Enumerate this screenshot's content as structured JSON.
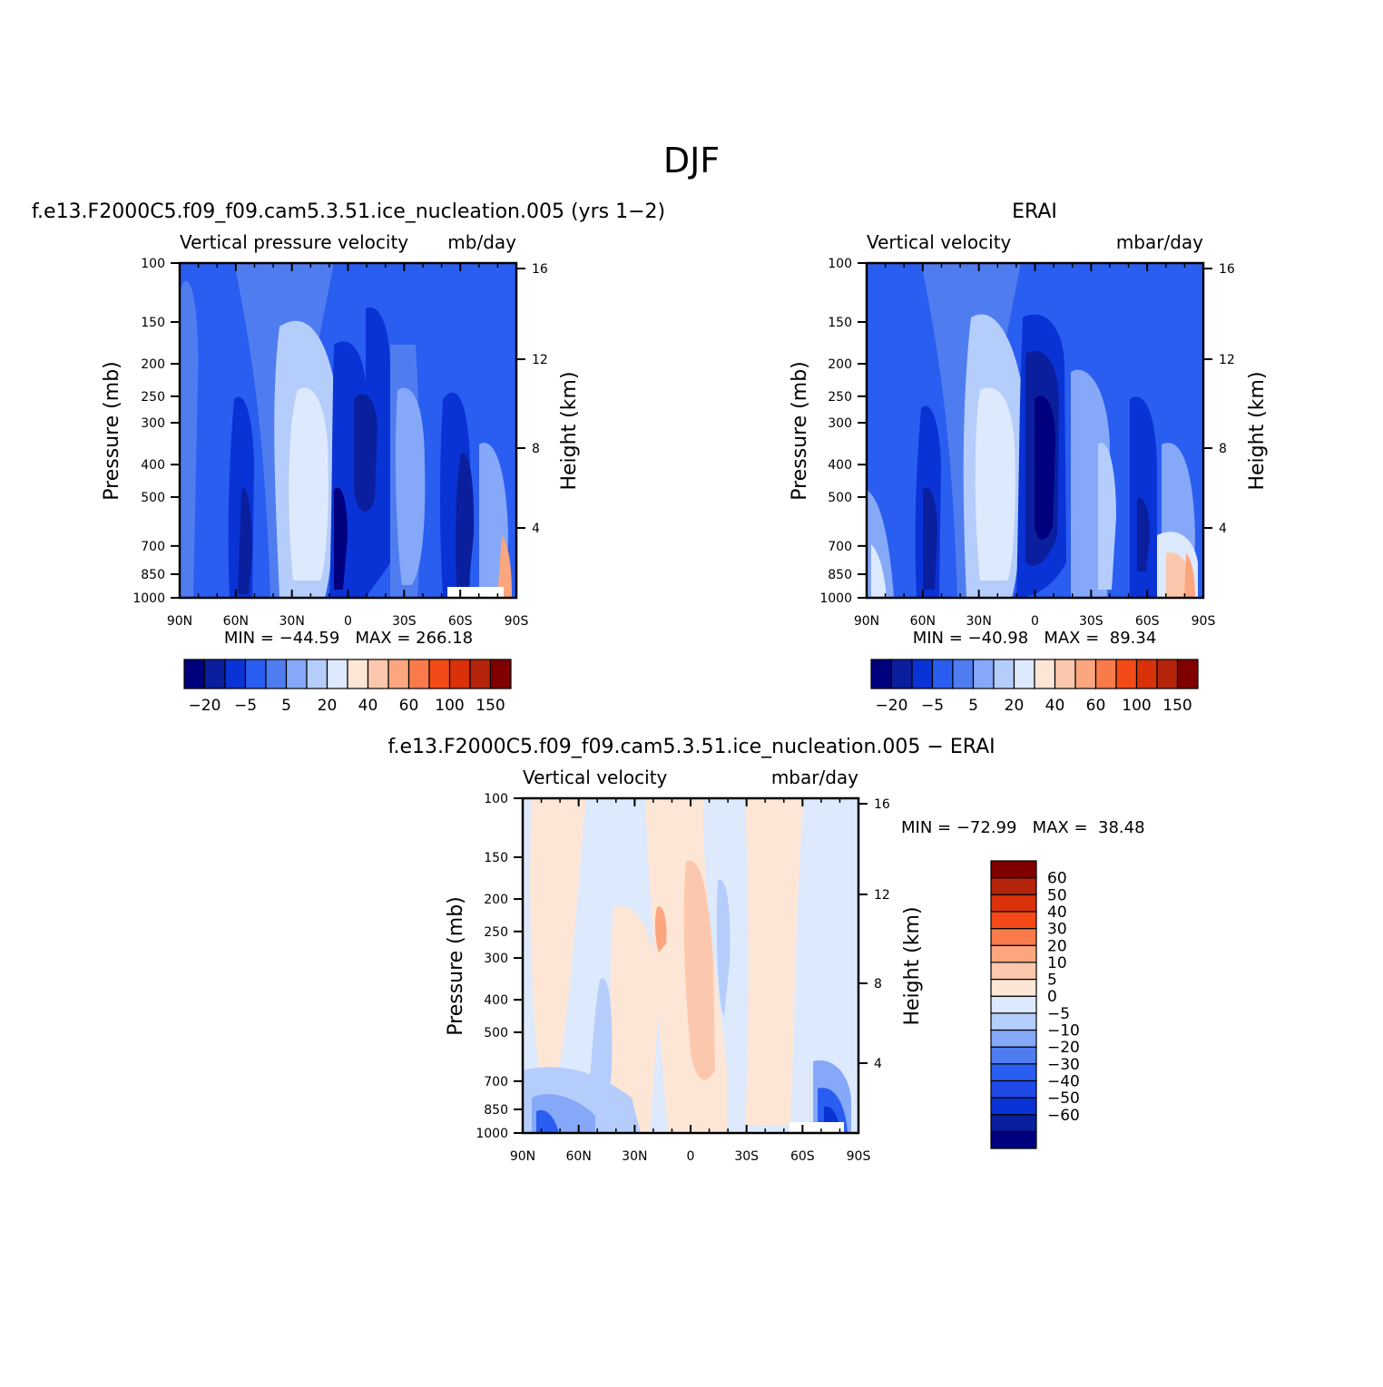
{
  "figure": {
    "title": "DJF"
  },
  "panels": {
    "model": {
      "title": "f.e13.F2000C5.f09_f09.cam5.3.51.ice_nucleation.005 (yrs 1−2)",
      "left_label": "Vertical pressure velocity",
      "right_label": "mb/day",
      "y_label": "Pressure (mb)",
      "y2_label": "Height (km)",
      "minmax": "MIN = −44.59   MAX = 266.18"
    },
    "obs": {
      "title": "ERAI",
      "left_label": "Vertical velocity",
      "right_label": "mbar/day",
      "y_label": "Pressure (mb)",
      "y2_label": "Height (km)",
      "minmax": "MIN = −40.98   MAX =  89.34"
    },
    "diff": {
      "title": "f.e13.F2000C5.f09_f09.cam5.3.51.ice_nucleation.005 − ERAI",
      "left_label": "Vertical velocity",
      "right_label": "mbar/day",
      "y_label": "Pressure (mb)",
      "y2_label": "Height (km)",
      "minmax": "MIN = −72.99   MAX =  38.48"
    }
  },
  "colorbars": {
    "top": {
      "colors": [
        "#00007f",
        "#0a1f9e",
        "#0a33d6",
        "#2a5ef0",
        "#4f7df0",
        "#85a8f8",
        "#b5cdfb",
        "#dde9fd",
        "#fde6d6",
        "#fcc8ad",
        "#fba67e",
        "#f97a4a",
        "#f44a17",
        "#d9310a",
        "#b3240a",
        "#800000"
      ],
      "labels": [
        "−20",
        "−5",
        "5",
        "20",
        "40",
        "60",
        "100",
        "150"
      ]
    },
    "diff": {
      "colors": [
        "#00007f",
        "#0a1f9e",
        "#0a33d6",
        "#1f4ae8",
        "#2a5ef0",
        "#4f7df0",
        "#85a8f8",
        "#b5cdfb",
        "#dde9fd",
        "#fde6d6",
        "#fcc8ad",
        "#fba67e",
        "#f97a4a",
        "#f44a17",
        "#d9310a",
        "#b3240a",
        "#800000"
      ],
      "labels": [
        "60",
        "50",
        "40",
        "30",
        "20",
        "10",
        "5",
        "0",
        "−5",
        "−10",
        "−20",
        "−30",
        "−40",
        "−50",
        "−60"
      ]
    }
  },
  "axes": {
    "x_ticks": [
      "90N",
      "60N",
      "30N",
      "0",
      "30S",
      "60S",
      "90S"
    ],
    "p_ticks": [
      "100",
      "150",
      "200",
      "250",
      "300",
      "400",
      "500",
      "700",
      "850",
      "1000"
    ],
    "h_ticks": [
      "16",
      "12",
      "8",
      "4"
    ]
  },
  "chart_data": [
    {
      "type": "heatmap",
      "title": "f.e13.F2000C5.f09_f09.cam5.3.51.ice_nucleation.005 (yrs 1−2)",
      "xlabel": "",
      "ylabel": "Pressure (mb)",
      "y2label": "Height (km)",
      "x": [
        "90N",
        "60N",
        "30N",
        "0",
        "30S",
        "60S",
        "90S"
      ],
      "y": [
        100,
        150,
        200,
        250,
        300,
        400,
        500,
        700,
        850,
        1000
      ],
      "y2": [
        16,
        12,
        8,
        4
      ],
      "xlim": [
        "90N",
        "90S"
      ],
      "ylim": [
        1000,
        100
      ],
      "units": "mb/day",
      "min": -44.59,
      "max": 266.18,
      "levels": [
        -30,
        -20,
        -10,
        -5,
        0,
        5,
        10,
        20,
        30,
        40,
        50,
        60,
        80,
        100,
        120,
        150
      ]
    },
    {
      "type": "heatmap",
      "title": "ERAI",
      "xlabel": "",
      "ylabel": "Pressure (mb)",
      "y2label": "Height (km)",
      "x": [
        "90N",
        "60N",
        "30N",
        "0",
        "30S",
        "60S",
        "90S"
      ],
      "y": [
        100,
        150,
        200,
        250,
        300,
        400,
        500,
        700,
        850,
        1000
      ],
      "y2": [
        16,
        12,
        8,
        4
      ],
      "xlim": [
        "90N",
        "90S"
      ],
      "ylim": [
        1000,
        100
      ],
      "units": "mbar/day",
      "min": -40.98,
      "max": 89.34,
      "levels": [
        -30,
        -20,
        -10,
        -5,
        0,
        5,
        10,
        20,
        30,
        40,
        50,
        60,
        80,
        100,
        120,
        150
      ]
    },
    {
      "type": "heatmap",
      "title": "f.e13.F2000C5.f09_f09.cam5.3.51.ice_nucleation.005 − ERAI",
      "xlabel": "",
      "ylabel": "Pressure (mb)",
      "y2label": "Height (km)",
      "x": [
        "90N",
        "60N",
        "30N",
        "0",
        "30S",
        "60S",
        "90S"
      ],
      "y": [
        100,
        150,
        200,
        250,
        300,
        400,
        500,
        700,
        850,
        1000
      ],
      "y2": [
        16,
        12,
        8,
        4
      ],
      "xlim": [
        "90N",
        "90S"
      ],
      "ylim": [
        1000,
        100
      ],
      "units": "mbar/day",
      "min": -72.99,
      "max": 38.48,
      "levels": [
        -60,
        -50,
        -40,
        -30,
        -20,
        -10,
        -5,
        0,
        5,
        10,
        20,
        30,
        40,
        50,
        60
      ]
    }
  ]
}
